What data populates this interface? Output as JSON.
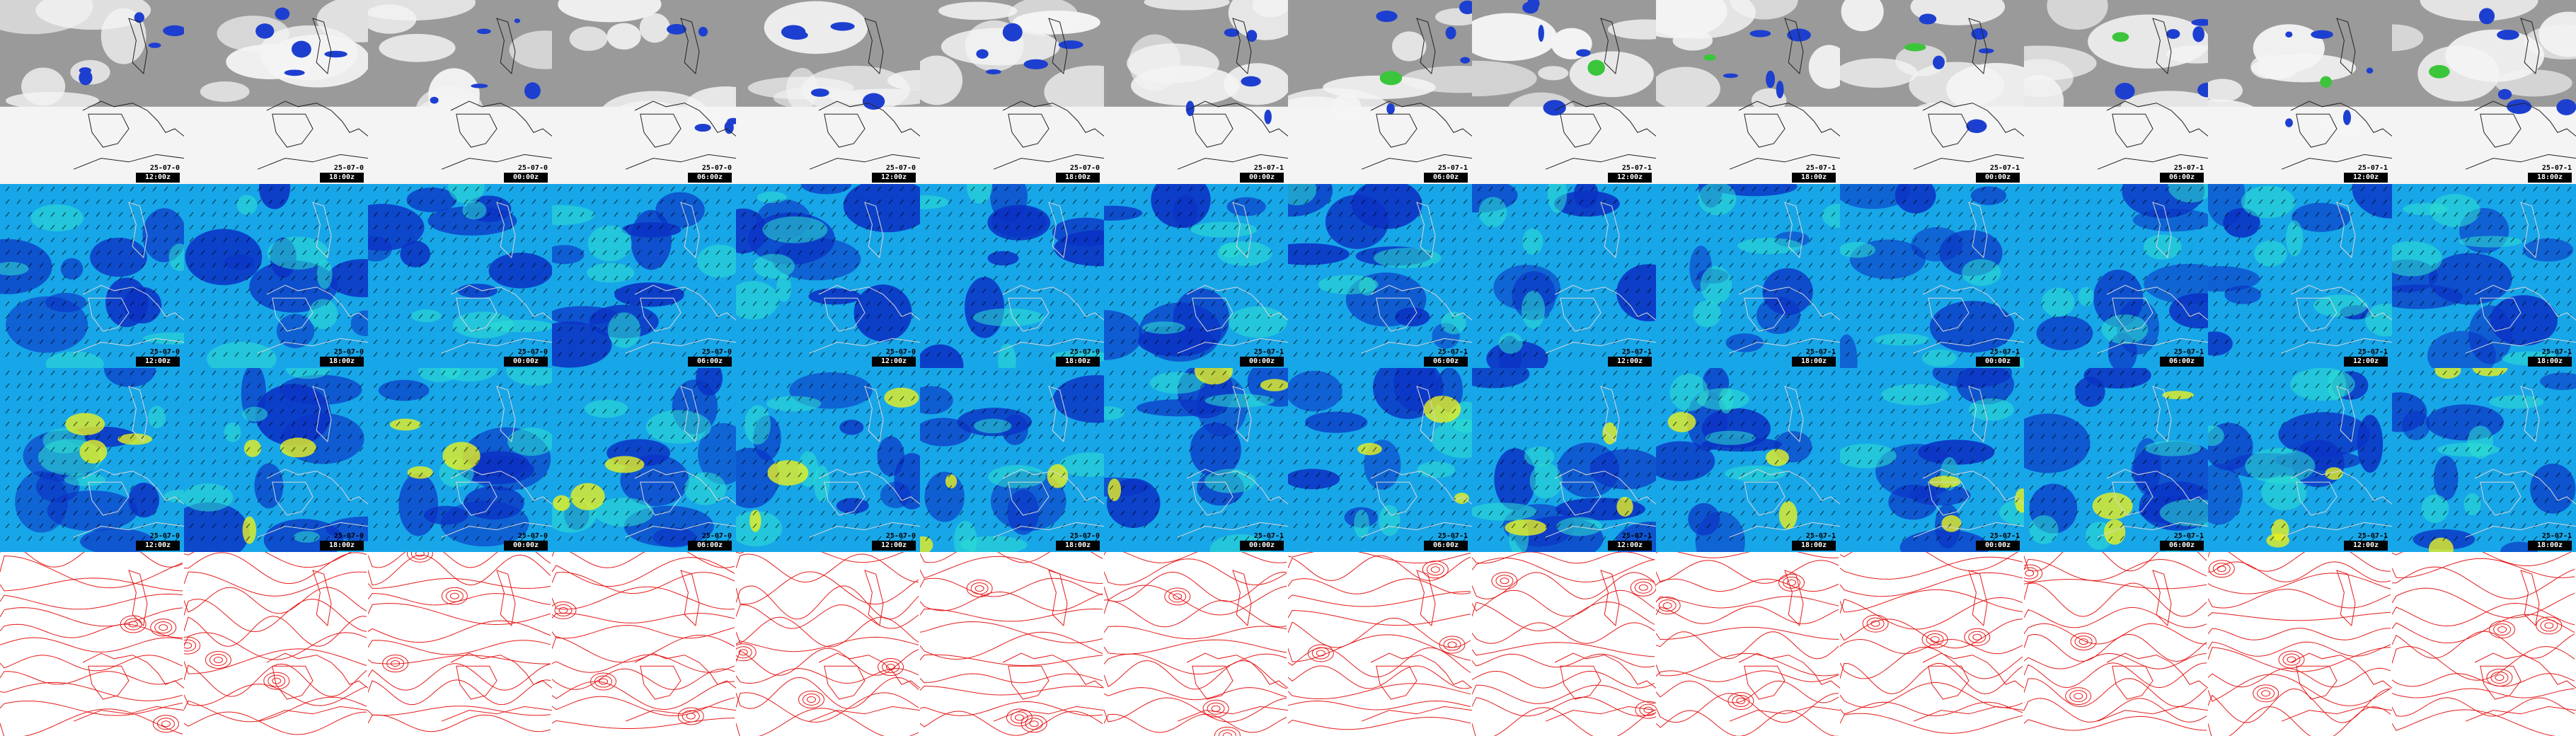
{
  "rows": [
    {
      "id": "cloud-cover",
      "style": "cloud"
    },
    {
      "id": "wind-lower",
      "style": "wind"
    },
    {
      "id": "wind-upper",
      "style": "windstrong"
    },
    {
      "id": "pressure-contours",
      "style": "contour"
    }
  ],
  "columns": [
    {
      "date": "25-07-0",
      "fc": "12:00z"
    },
    {
      "date": "25-07-0",
      "fc": "18:00z"
    },
    {
      "date": "25-07-0",
      "fc": "00:00z"
    },
    {
      "date": "25-07-0",
      "fc": "06:00z"
    },
    {
      "date": "25-07-0",
      "fc": "12:00z"
    },
    {
      "date": "25-07-0",
      "fc": "18:00z"
    },
    {
      "date": "25-07-1",
      "fc": "00:00z"
    },
    {
      "date": "25-07-1",
      "fc": "06:00z"
    },
    {
      "date": "25-07-1",
      "fc": "12:00z"
    },
    {
      "date": "25-07-1",
      "fc": "18:00z"
    },
    {
      "date": "25-07-1",
      "fc": "00:00z"
    },
    {
      "date": "25-07-1",
      "fc": "06:00z"
    },
    {
      "date": "25-07-1",
      "fc": "12:00z"
    },
    {
      "date": "25-07-1",
      "fc": "18:00z"
    }
  ],
  "colors": {
    "cloud_bg": "#9a9a9a",
    "cloud_white": "#f4f4f4",
    "precip_blue": "#1d3fd0",
    "precip_green": "#3bc53b",
    "wind_base": "#17a6e8",
    "wind_dark": "#0b32c4",
    "wind_light": "#2ee0d0",
    "wind_yellow": "#e8f020",
    "contour_red": "#e41a1a",
    "coast": "#222222"
  }
}
